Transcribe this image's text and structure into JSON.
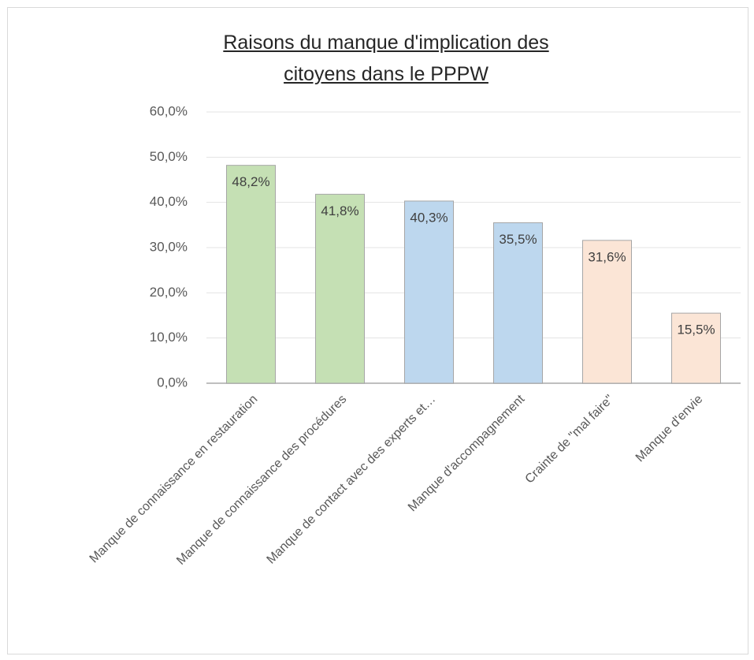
{
  "chart_data": {
    "type": "bar",
    "title": "Raisons du manque d'implication des citoyens dans le PPPW",
    "categories": [
      "Manque de connaissance en restauration",
      "Manque de connaissance des procédures",
      "Manque de contact avec des experts et…",
      "Manque d'accompagnement",
      "Crainte de \"mal faire\"",
      "Manque d'envie"
    ],
    "values": [
      48.2,
      41.8,
      40.3,
      35.5,
      31.6,
      15.5
    ],
    "value_labels": [
      "48,2%",
      "41,8%",
      "40,3%",
      "35,5%",
      "31,6%",
      "15,5%"
    ],
    "colors": [
      "#c5e0b4",
      "#c5e0b4",
      "#bdd7ee",
      "#bdd7ee",
      "#fbe5d6",
      "#fbe5d6"
    ],
    "ylim": [
      0,
      60
    ],
    "yticks": [
      {
        "value": 0,
        "label": "0,0%"
      },
      {
        "value": 10,
        "label": "10,0%"
      },
      {
        "value": 20,
        "label": "20,0%"
      },
      {
        "value": 30,
        "label": "30,0%"
      },
      {
        "value": 40,
        "label": "40,0%"
      },
      {
        "value": 50,
        "label": "50,0%"
      },
      {
        "value": 60,
        "label": "60,0%"
      }
    ],
    "grid": true
  }
}
